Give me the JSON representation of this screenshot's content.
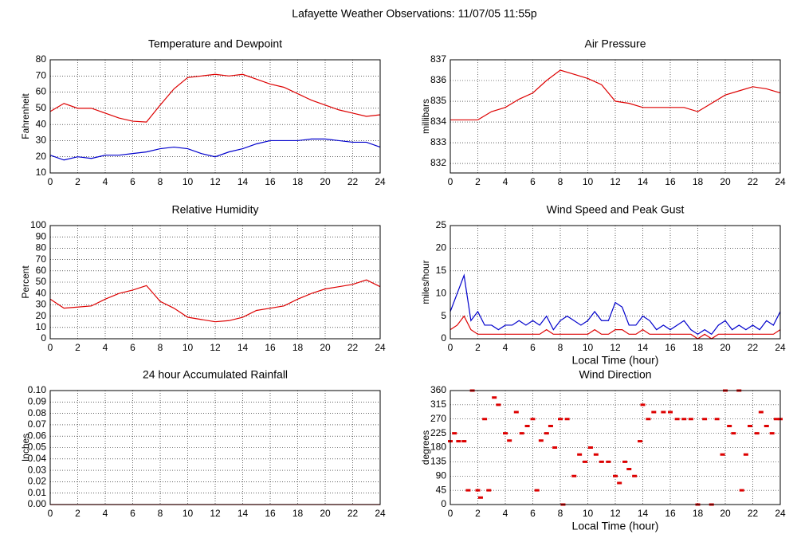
{
  "title": "Lafayette Weather Observations: 11/07/05 11:55p",
  "chart_data": [
    {
      "type": "line",
      "title": "Temperature and Dewpoint",
      "ylabel": "Fahrenheit",
      "x": [
        0,
        1,
        2,
        3,
        4,
        5,
        6,
        7,
        8,
        9,
        10,
        11,
        12,
        13,
        14,
        15,
        16,
        17,
        18,
        19,
        20,
        21,
        22,
        23,
        24
      ],
      "series": [
        {
          "color": "#dd0000",
          "values": [
            48,
            53,
            50,
            50,
            47,
            44,
            42,
            41.5,
            52,
            62,
            69,
            70,
            71,
            70,
            71,
            68,
            65,
            63,
            59,
            55,
            52,
            49,
            47,
            45,
            46
          ]
        },
        {
          "color": "#0000cc",
          "values": [
            21,
            18,
            20,
            19,
            21,
            21,
            22,
            23,
            25,
            26,
            25,
            22,
            20,
            23,
            25,
            28,
            30,
            30,
            30,
            31,
            31,
            30,
            29,
            29,
            26
          ]
        }
      ],
      "xlim": [
        0,
        24
      ],
      "xticks": [
        0,
        2,
        4,
        6,
        8,
        10,
        12,
        14,
        16,
        18,
        20,
        22,
        24
      ],
      "ylim": [
        10,
        80
      ],
      "yticks": [
        10,
        20,
        30,
        40,
        50,
        60,
        70,
        80
      ],
      "grid": true
    },
    {
      "type": "line",
      "title": "Air Pressure",
      "ylabel": "millibars",
      "x": [
        0,
        1,
        2,
        3,
        4,
        5,
        6,
        7,
        8,
        9,
        10,
        11,
        12,
        13,
        14,
        15,
        16,
        17,
        18,
        19,
        20,
        21,
        22,
        23,
        24
      ],
      "series": [
        {
          "color": "#dd0000",
          "values": [
            834.1,
            834.1,
            834.1,
            834.5,
            834.7,
            835.1,
            835.4,
            836.0,
            836.5,
            836.3,
            836.1,
            835.8,
            835.0,
            834.9,
            834.7,
            834.7,
            834.7,
            834.7,
            834.5,
            834.9,
            835.3,
            835.5,
            835.7,
            835.6,
            835.4
          ]
        }
      ],
      "xlim": [
        0,
        24
      ],
      "xticks": [
        0,
        2,
        4,
        6,
        8,
        10,
        12,
        14,
        16,
        18,
        20,
        22,
        24
      ],
      "ylim": [
        831.54,
        837
      ],
      "yticks": [
        832,
        833,
        834,
        835,
        836,
        837
      ],
      "grid": true
    },
    {
      "type": "line",
      "title": "Relative Humidity",
      "ylabel": "Percent",
      "x": [
        0,
        1,
        2,
        3,
        4,
        5,
        6,
        7,
        8,
        9,
        10,
        11,
        12,
        13,
        14,
        15,
        16,
        17,
        18,
        19,
        20,
        21,
        22,
        23,
        24
      ],
      "series": [
        {
          "color": "#dd0000",
          "values": [
            35,
            27,
            28,
            29,
            35,
            40,
            43,
            47,
            33,
            27,
            19,
            17,
            15,
            16,
            19,
            25,
            27,
            29,
            35,
            40,
            44,
            46,
            48,
            52,
            46
          ]
        }
      ],
      "xlim": [
        0,
        24
      ],
      "xticks": [
        0,
        2,
        4,
        6,
        8,
        10,
        12,
        14,
        16,
        18,
        20,
        22,
        24
      ],
      "ylim": [
        0,
        100
      ],
      "yticks": [
        0,
        10,
        20,
        30,
        40,
        50,
        60,
        70,
        80,
        90,
        100
      ],
      "grid": true
    },
    {
      "type": "line",
      "title": "Wind Speed and Peak Gust",
      "ylabel": "miles/hour",
      "xlabel": "Local Time (hour)",
      "x": [
        0,
        0.5,
        1,
        1.5,
        2,
        2.5,
        3,
        3.5,
        4,
        4.5,
        5,
        5.5,
        6,
        6.5,
        7,
        7.5,
        8,
        8.5,
        9,
        9.5,
        10,
        10.5,
        11,
        11.5,
        12,
        12.5,
        13,
        13.5,
        14,
        14.5,
        15,
        15.5,
        16,
        16.5,
        17,
        17.5,
        18,
        18.5,
        19,
        19.5,
        20,
        20.5,
        21,
        21.5,
        22,
        22.5,
        23,
        23.5,
        24
      ],
      "series": [
        {
          "color": "#0000cc",
          "values": [
            6,
            10,
            14,
            4,
            6,
            3,
            3,
            2,
            3,
            3,
            4,
            3,
            4,
            3,
            5,
            2,
            4,
            5,
            4,
            3,
            4,
            6,
            4,
            4,
            8,
            7,
            3,
            3,
            5,
            4,
            2,
            3,
            2,
            3,
            4,
            2,
            1,
            2,
            1,
            3,
            4,
            2,
            3,
            2,
            3,
            2,
            4,
            3,
            6
          ]
        },
        {
          "color": "#dd0000",
          "values": [
            2,
            3,
            5,
            2,
            1,
            1,
            1,
            1,
            1,
            1,
            1,
            1,
            1,
            1,
            2,
            1,
            1,
            1,
            1,
            1,
            1,
            2,
            1,
            1,
            2,
            2,
            1,
            1,
            2,
            1,
            1,
            1,
            1,
            1,
            1,
            1,
            0,
            1,
            0,
            1,
            1,
            1,
            1,
            1,
            1,
            1,
            1,
            1,
            2
          ]
        }
      ],
      "xlim": [
        0,
        24
      ],
      "xticks": [
        0,
        2,
        4,
        6,
        8,
        10,
        12,
        14,
        16,
        18,
        20,
        22,
        24
      ],
      "ylim": [
        0,
        25
      ],
      "yticks": [
        0,
        5,
        10,
        15,
        20,
        25
      ],
      "grid": true
    },
    {
      "type": "line",
      "title": "24 hour Accumulated Rainfall",
      "ylabel": "Inches",
      "x": [
        0,
        1,
        2,
        3,
        4,
        5,
        6,
        7,
        8,
        9,
        10,
        11,
        12,
        13,
        14,
        15,
        16,
        17,
        18,
        19,
        20,
        21,
        22,
        23,
        24
      ],
      "series": [
        {
          "color": "#dd0000",
          "values": [
            0,
            0,
            0,
            0,
            0,
            0,
            0,
            0,
            0,
            0,
            0,
            0,
            0,
            0,
            0,
            0,
            0,
            0,
            0,
            0,
            0,
            0,
            0,
            0,
            0
          ]
        }
      ],
      "xlim": [
        0,
        24
      ],
      "xticks": [
        0,
        2,
        4,
        6,
        8,
        10,
        12,
        14,
        16,
        18,
        20,
        22,
        24
      ],
      "ylim": [
        0,
        0.1
      ],
      "yticks": [
        {
          "value": 0,
          "label": "0.00"
        },
        {
          "value": 0.01,
          "label": "0.01"
        },
        {
          "value": 0.02,
          "label": "0.02"
        },
        {
          "value": 0.03,
          "label": "0.03"
        },
        {
          "value": 0.04,
          "label": "0.04"
        },
        {
          "value": 0.05,
          "label": "0.05"
        },
        {
          "value": 0.06,
          "label": "0.06"
        },
        {
          "value": 0.07,
          "label": "0.07"
        },
        {
          "value": 0.08,
          "label": "0.08"
        },
        {
          "value": 0.09,
          "label": "0.09"
        },
        {
          "value": 0.1,
          "label": "0.10"
        }
      ],
      "grid": true
    },
    {
      "type": "scatter",
      "title": "Wind Direction",
      "ylabel": "degrees",
      "xlabel": "Local Time (hour)",
      "x": [
        0,
        0.3,
        0.6,
        1,
        1.3,
        1.6,
        2,
        2.2,
        2.5,
        2.8,
        3.2,
        3.5,
        4,
        4.3,
        4.8,
        5.2,
        5.6,
        6,
        6.3,
        6.6,
        7,
        7.3,
        7.6,
        8,
        8.2,
        8.5,
        9,
        9.4,
        9.8,
        10.2,
        10.6,
        11,
        11.5,
        12,
        12.3,
        12.7,
        13,
        13.4,
        13.8,
        14,
        14.4,
        14.8,
        15.5,
        16,
        16.5,
        17,
        17.5,
        18,
        18.5,
        19,
        19.4,
        19.8,
        20,
        20.3,
        20.6,
        21,
        21.2,
        21.5,
        21.8,
        22.3,
        22.6,
        23,
        23.4,
        23.7,
        24
      ],
      "series": [
        {
          "color": "#dd0000",
          "values": [
            200,
            225,
            200,
            200,
            45,
            360,
            45,
            22,
            270,
            45,
            338,
            315,
            225,
            202,
            292,
            225,
            248,
            270,
            45,
            202,
            225,
            248,
            180,
            270,
            0,
            270,
            90,
            158,
            135,
            180,
            158,
            135,
            135,
            90,
            68,
            135,
            112,
            90,
            200,
            315,
            270,
            292,
            292,
            292,
            270,
            270,
            270,
            0,
            270,
            0,
            270,
            158,
            360,
            248,
            225,
            360,
            45,
            158,
            248,
            225,
            292,
            248,
            225,
            270,
            270
          ]
        }
      ],
      "xlim": [
        0,
        24
      ],
      "xticks": [
        0,
        2,
        4,
        6,
        8,
        10,
        12,
        14,
        16,
        18,
        20,
        22,
        24
      ],
      "ylim": [
        0,
        360
      ],
      "yticks": [
        0,
        45,
        90,
        135,
        180,
        225,
        270,
        315,
        360
      ],
      "grid": true
    }
  ]
}
